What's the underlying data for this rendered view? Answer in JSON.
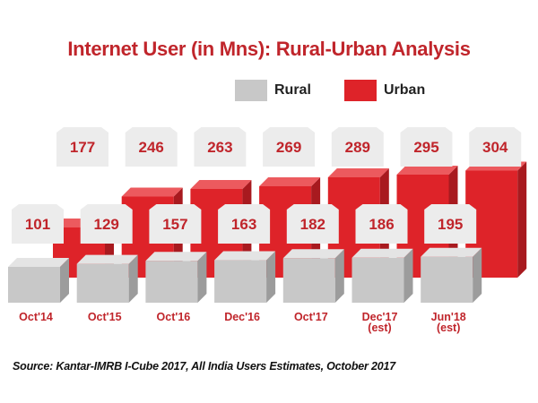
{
  "chart_data": {
    "type": "bar",
    "title": "Internet User (in Mns): Rural-Urban Analysis",
    "categories": [
      "Oct'14",
      "Oct'15",
      "Oct'16",
      "Dec'16",
      "Oct'17",
      "Dec'17 (est)",
      "Jun'18 (est)"
    ],
    "category_lines": [
      [
        "Oct'14"
      ],
      [
        "Oct'15"
      ],
      [
        "Oct'16"
      ],
      [
        "Dec'16"
      ],
      [
        "Oct'17"
      ],
      [
        "Dec'17",
        "(est)"
      ],
      [
        "Jun'18",
        "(est)"
      ]
    ],
    "series": [
      {
        "name": "Rural",
        "values": [
          101,
          129,
          157,
          163,
          182,
          186,
          195
        ],
        "color": "#c8c8c8"
      },
      {
        "name": "Urban",
        "values": [
          177,
          246,
          263,
          269,
          289,
          295,
          304
        ],
        "color": "#de2329"
      }
    ],
    "legend_position": "top-right",
    "grid": false,
    "data_labels": true
  },
  "source": "Source: Kantar-IMRB I-Cube 2017, All India Users Estimates, October 2017",
  "colors": {
    "title": "#c0252b",
    "urban": "#de2329",
    "urban_side": "#a81a1f",
    "urban_top": "#ec5a5e",
    "rural": "#c8c8c8",
    "rural_side": "#9c9c9c",
    "rural_top": "#e4e4e4",
    "label_box": "#ececec",
    "label_text": "#c0252b",
    "category_text": "#c0252b"
  }
}
